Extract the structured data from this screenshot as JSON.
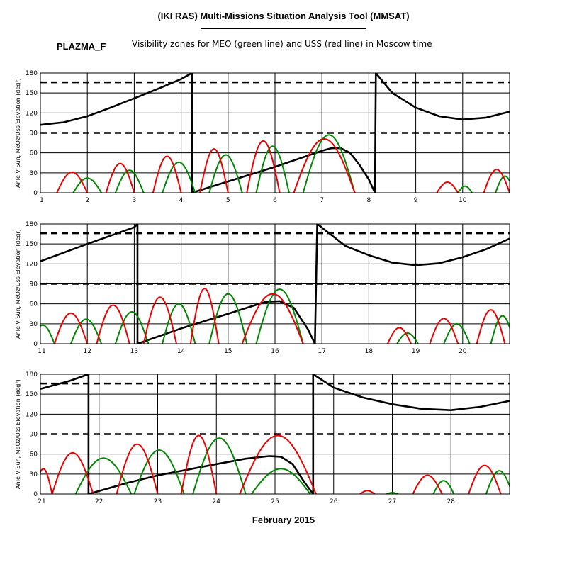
{
  "header": {
    "title": "(IKI RAS) Multi-Missions Situation Analysis Tool (MMSAT)",
    "code": "PLAZMA_F",
    "subtitle": "Visibility zones for MEO (green line) and USS (red line) in Moscow time"
  },
  "footer": {
    "label": "February 2015"
  },
  "colors": {
    "meo": "#008800",
    "uss": "#ee0000",
    "sun": "#000000",
    "grid": "#000000"
  },
  "chart_data": [
    {
      "type": "line",
      "title": "",
      "ylabel": "Anle V Sun, MeOz/Uss Elevation (degr)",
      "xlim": [
        1,
        11
      ],
      "ylim": [
        0,
        180
      ],
      "xticks": [
        "1",
        "2",
        "3",
        "4",
        "5",
        "6",
        "7",
        "8",
        "9",
        "10"
      ],
      "yticks": [
        "0",
        "30",
        "60",
        "90",
        "120",
        "150",
        "180"
      ],
      "reference_lines": [
        90,
        166
      ],
      "grid": true,
      "series": [
        {
          "role": "sun",
          "points": [
            [
              1,
              102
            ],
            [
              1.5,
              106
            ],
            [
              2,
              115
            ],
            [
              2.5,
              128
            ],
            [
              3,
              142
            ],
            [
              3.5,
              156
            ],
            [
              4,
              171
            ],
            [
              4.23,
              180
            ],
            [
              4.23,
              0
            ],
            [
              5,
              17
            ],
            [
              6,
              39
            ],
            [
              7,
              63
            ],
            [
              7.2,
              67
            ],
            [
              7.4,
              67
            ],
            [
              7.6,
              60
            ],
            [
              7.8,
              42
            ],
            [
              8.0,
              20
            ],
            [
              8.13,
              0
            ],
            [
              8.15,
              180
            ],
            [
              8.5,
              150
            ],
            [
              9,
              128
            ],
            [
              9.5,
              115
            ],
            [
              10,
              110
            ],
            [
              10.5,
              113
            ],
            [
              11,
              122
            ]
          ]
        },
        {
          "role": "meo",
          "passes": [
            [
              1.7,
              2.3,
              22
            ],
            [
              2.6,
              3.2,
              34
            ],
            [
              3.6,
              4.3,
              46
            ],
            [
              4.6,
              5.3,
              57
            ],
            [
              5.6,
              6.3,
              70
            ],
            [
              6.6,
              7.7,
              87
            ],
            [
              9.9,
              10.2,
              10
            ],
            [
              10.7,
              11.1,
              25
            ]
          ]
        },
        {
          "role": "uss",
          "passes": [
            [
              1.35,
              2.0,
              31
            ],
            [
              2.4,
              3.0,
              44
            ],
            [
              3.4,
              4.0,
              55
            ],
            [
              4.4,
              5.0,
              66
            ],
            [
              5.4,
              6.1,
              78
            ],
            [
              6.4,
              7.7,
              81
            ],
            [
              9.45,
              9.9,
              16
            ],
            [
              10.45,
              11.0,
              35
            ]
          ]
        }
      ]
    },
    {
      "type": "line",
      "title": "",
      "ylabel": "Anle V Sun, MeOz/Uss Elevation (degr)",
      "xlim": [
        11,
        21
      ],
      "ylim": [
        0,
        180
      ],
      "xticks": [
        "11",
        "12",
        "13",
        "14",
        "15",
        "16",
        "17",
        "18",
        "19",
        "20"
      ],
      "yticks": [
        "0",
        "30",
        "60",
        "90",
        "120",
        "150",
        "180"
      ],
      "reference_lines": [
        90,
        166
      ],
      "grid": true,
      "series": [
        {
          "role": "sun",
          "points": [
            [
              11,
              124
            ],
            [
              12,
              150
            ],
            [
              13,
              175
            ],
            [
              13.07,
              180
            ],
            [
              13.07,
              0
            ],
            [
              14,
              23
            ],
            [
              15,
              45
            ],
            [
              15.8,
              63
            ],
            [
              16.1,
              64
            ],
            [
              16.4,
              54
            ],
            [
              16.7,
              22
            ],
            [
              16.85,
              0
            ],
            [
              16.9,
              180
            ],
            [
              17.5,
              147
            ],
            [
              18,
              133
            ],
            [
              18.5,
              122
            ],
            [
              19,
              118
            ],
            [
              19.5,
              121
            ],
            [
              20,
              130
            ],
            [
              20.5,
              142
            ],
            [
              21,
              158
            ]
          ]
        },
        {
          "role": "meo",
          "passes": [
            [
              10.8,
              11.3,
              28
            ],
            [
              11.65,
              12.3,
              37
            ],
            [
              12.6,
              13.3,
              48
            ],
            [
              13.6,
              14.3,
              60
            ],
            [
              14.6,
              15.4,
              75
            ],
            [
              15.6,
              16.6,
              82
            ],
            [
              18.6,
              19.05,
              16
            ],
            [
              19.6,
              20.15,
              30
            ],
            [
              20.6,
              21.1,
              42
            ]
          ]
        },
        {
          "role": "uss",
          "passes": [
            [
              11.3,
              12.0,
              46
            ],
            [
              12.2,
              12.9,
              58
            ],
            [
              13.2,
              13.9,
              70
            ],
            [
              14.2,
              14.8,
              83
            ],
            [
              15.3,
              16.6,
              75
            ],
            [
              18.4,
              18.9,
              24
            ],
            [
              19.3,
              19.9,
              38
            ],
            [
              20.3,
              20.9,
              51
            ]
          ]
        }
      ]
    },
    {
      "type": "line",
      "title": "",
      "ylabel": "Anle V Sun, MeOz/Uss Elevation (degr)",
      "xlim": [
        21,
        29
      ],
      "ylim": [
        0,
        180
      ],
      "xticks": [
        "21",
        "22",
        "23",
        "24",
        "25",
        "26",
        "27",
        "28"
      ],
      "yticks": [
        "0",
        "30",
        "60",
        "90",
        "120",
        "150",
        "180"
      ],
      "reference_lines": [
        90,
        166
      ],
      "grid": true,
      "series": [
        {
          "role": "sun",
          "points": [
            [
              21,
              158
            ],
            [
              21.5,
              170
            ],
            [
              21.82,
              180
            ],
            [
              21.82,
              0
            ],
            [
              22.5,
              17
            ],
            [
              23,
              28
            ],
            [
              24,
              45
            ],
            [
              24.5,
              53
            ],
            [
              24.9,
              57
            ],
            [
              25.1,
              56
            ],
            [
              25.3,
              45
            ],
            [
              25.5,
              18
            ],
            [
              25.65,
              0
            ],
            [
              25.65,
              180
            ],
            [
              26,
              160
            ],
            [
              26.5,
              145
            ],
            [
              27,
              135
            ],
            [
              27.5,
              128
            ],
            [
              28,
              126
            ],
            [
              28.5,
              131
            ],
            [
              29,
              140
            ]
          ]
        },
        {
          "role": "meo",
          "passes": [
            [
              21.6,
              22.55,
              54
            ],
            [
              22.6,
              23.45,
              66
            ],
            [
              23.6,
              24.5,
              84
            ],
            [
              24.6,
              25.6,
              38
            ],
            [
              26.9,
              27.1,
              2
            ],
            [
              27.7,
              28.05,
              20
            ],
            [
              28.6,
              29.05,
              35
            ]
          ]
        },
        {
          "role": "uss",
          "passes": [
            [
              20.9,
              21.2,
              38
            ],
            [
              21.2,
              21.9,
              62
            ],
            [
              22.3,
              23.0,
              75
            ],
            [
              23.4,
              24.0,
              88
            ],
            [
              24.4,
              25.7,
              88
            ],
            [
              26.45,
              26.7,
              5
            ],
            [
              27.35,
              27.85,
              28
            ],
            [
              28.3,
              28.85,
              43
            ]
          ]
        }
      ]
    }
  ]
}
